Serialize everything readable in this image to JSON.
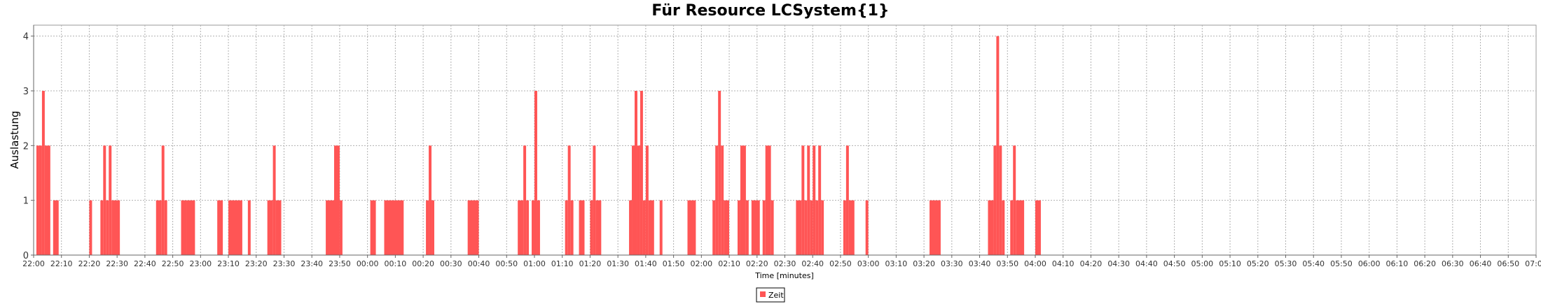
{
  "chart_data": {
    "type": "bar",
    "title": "Für Resource LCSystem{1}",
    "xlabel": "Time [minutes]",
    "ylabel": "Auslastung",
    "x_start": "22:00",
    "x_end": "07:00",
    "x_tick_labels": [
      "22:00",
      "22:10",
      "22:20",
      "22:30",
      "22:40",
      "22:50",
      "23:00",
      "23:10",
      "23:20",
      "23:30",
      "23:40",
      "23:50",
      "00:00",
      "00:10",
      "00:20",
      "00:30",
      "00:40",
      "00:50",
      "01:00",
      "01:10",
      "01:20",
      "01:30",
      "01:40",
      "01:50",
      "02:00",
      "02:10",
      "02:20",
      "02:30",
      "02:40",
      "02:50",
      "03:00",
      "03:10",
      "03:20",
      "03:30",
      "03:40",
      "03:50",
      "04:00",
      "04:10",
      "04:20",
      "04:30",
      "04:40",
      "04:50",
      "05:00",
      "05:10",
      "05:20",
      "05:30",
      "05:40",
      "05:50",
      "06:00",
      "06:10",
      "06:20",
      "06:30",
      "06:40",
      "06:50",
      "07:00"
    ],
    "y_ticks": [
      0,
      1,
      2,
      3,
      4
    ],
    "ylim": [
      0,
      4.2
    ],
    "grid": true,
    "legend_position": "bottom-center",
    "color": "#ff5555",
    "series": [
      {
        "name": "Zeit",
        "bars": [
          {
            "start": "22:01",
            "end": "22:02",
            "value": 2
          },
          {
            "start": "22:02",
            "end": "22:03",
            "value": 2
          },
          {
            "start": "22:03",
            "end": "22:04",
            "value": 3
          },
          {
            "start": "22:04",
            "end": "22:06",
            "value": 2
          },
          {
            "start": "22:07",
            "end": "22:09",
            "value": 1
          },
          {
            "start": "22:20",
            "end": "22:21",
            "value": 1
          },
          {
            "start": "22:24",
            "end": "22:25",
            "value": 1
          },
          {
            "start": "22:25",
            "end": "22:26",
            "value": 2
          },
          {
            "start": "22:26",
            "end": "22:27",
            "value": 1
          },
          {
            "start": "22:27",
            "end": "22:28",
            "value": 2
          },
          {
            "start": "22:28",
            "end": "22:31",
            "value": 1
          },
          {
            "start": "22:44",
            "end": "22:46",
            "value": 1
          },
          {
            "start": "22:46",
            "end": "22:47",
            "value": 2
          },
          {
            "start": "22:47",
            "end": "22:48",
            "value": 1
          },
          {
            "start": "22:53",
            "end": "22:55",
            "value": 1
          },
          {
            "start": "22:55",
            "end": "22:58",
            "value": 1
          },
          {
            "start": "23:06",
            "end": "23:08",
            "value": 1
          },
          {
            "start": "23:10",
            "end": "23:15",
            "value": 1
          },
          {
            "start": "23:17",
            "end": "23:18",
            "value": 1
          },
          {
            "start": "23:24",
            "end": "23:26",
            "value": 1
          },
          {
            "start": "23:26",
            "end": "23:27",
            "value": 2
          },
          {
            "start": "23:27",
            "end": "23:29",
            "value": 1
          },
          {
            "start": "23:45",
            "end": "23:48",
            "value": 1
          },
          {
            "start": "23:48",
            "end": "23:50",
            "value": 2
          },
          {
            "start": "23:50",
            "end": "23:51",
            "value": 1
          },
          {
            "start": "00:01",
            "end": "00:03",
            "value": 1
          },
          {
            "start": "00:06",
            "end": "00:13",
            "value": 1
          },
          {
            "start": "00:21",
            "end": "00:22",
            "value": 1
          },
          {
            "start": "00:22",
            "end": "00:23",
            "value": 2
          },
          {
            "start": "00:23",
            "end": "00:24",
            "value": 1
          },
          {
            "start": "00:36",
            "end": "00:40",
            "value": 1
          },
          {
            "start": "00:54",
            "end": "00:56",
            "value": 1
          },
          {
            "start": "00:56",
            "end": "00:57",
            "value": 2
          },
          {
            "start": "00:57",
            "end": "00:58",
            "value": 1
          },
          {
            "start": "00:59",
            "end": "01:00",
            "value": 1
          },
          {
            "start": "01:00",
            "end": "01:01",
            "value": 3
          },
          {
            "start": "01:01",
            "end": "01:02",
            "value": 1
          },
          {
            "start": "01:11",
            "end": "01:12",
            "value": 1
          },
          {
            "start": "01:12",
            "end": "01:13",
            "value": 2
          },
          {
            "start": "01:13",
            "end": "01:14",
            "value": 1
          },
          {
            "start": "01:16",
            "end": "01:18",
            "value": 1
          },
          {
            "start": "01:20",
            "end": "01:21",
            "value": 1
          },
          {
            "start": "01:21",
            "end": "01:22",
            "value": 2
          },
          {
            "start": "01:22",
            "end": "01:24",
            "value": 1
          },
          {
            "start": "01:34",
            "end": "01:35",
            "value": 1
          },
          {
            "start": "01:35",
            "end": "01:36",
            "value": 2
          },
          {
            "start": "01:36",
            "end": "01:37",
            "value": 3
          },
          {
            "start": "01:37",
            "end": "01:38",
            "value": 2
          },
          {
            "start": "01:38",
            "end": "01:39",
            "value": 3
          },
          {
            "start": "01:39",
            "end": "01:40",
            "value": 1
          },
          {
            "start": "01:40",
            "end": "01:41",
            "value": 2
          },
          {
            "start": "01:41",
            "end": "01:43",
            "value": 1
          },
          {
            "start": "01:45",
            "end": "01:46",
            "value": 1
          },
          {
            "start": "01:55",
            "end": "01:58",
            "value": 1
          },
          {
            "start": "02:04",
            "end": "02:05",
            "value": 1
          },
          {
            "start": "02:05",
            "end": "02:06",
            "value": 2
          },
          {
            "start": "02:06",
            "end": "02:07",
            "value": 3
          },
          {
            "start": "02:07",
            "end": "02:08",
            "value": 2
          },
          {
            "start": "02:08",
            "end": "02:10",
            "value": 1
          },
          {
            "start": "02:13",
            "end": "02:14",
            "value": 1
          },
          {
            "start": "02:14",
            "end": "02:16",
            "value": 2
          },
          {
            "start": "02:16",
            "end": "02:17",
            "value": 1
          },
          {
            "start": "02:18",
            "end": "02:21",
            "value": 1
          },
          {
            "start": "02:22",
            "end": "02:23",
            "value": 1
          },
          {
            "start": "02:23",
            "end": "02:25",
            "value": 2
          },
          {
            "start": "02:25",
            "end": "02:26",
            "value": 1
          },
          {
            "start": "02:34",
            "end": "02:36",
            "value": 1
          },
          {
            "start": "02:36",
            "end": "02:37",
            "value": 2
          },
          {
            "start": "02:37",
            "end": "02:38",
            "value": 1
          },
          {
            "start": "02:38",
            "end": "02:39",
            "value": 2
          },
          {
            "start": "02:39",
            "end": "02:40",
            "value": 1
          },
          {
            "start": "02:40",
            "end": "02:41",
            "value": 2
          },
          {
            "start": "02:41",
            "end": "02:42",
            "value": 1
          },
          {
            "start": "02:42",
            "end": "02:43",
            "value": 2
          },
          {
            "start": "02:43",
            "end": "02:44",
            "value": 1
          },
          {
            "start": "02:51",
            "end": "02:52",
            "value": 1
          },
          {
            "start": "02:52",
            "end": "02:53",
            "value": 2
          },
          {
            "start": "02:53",
            "end": "02:55",
            "value": 1
          },
          {
            "start": "02:59",
            "end": "03:00",
            "value": 1
          },
          {
            "start": "03:22",
            "end": "03:26",
            "value": 1
          },
          {
            "start": "03:43",
            "end": "03:45",
            "value": 1
          },
          {
            "start": "03:45",
            "end": "03:46",
            "value": 2
          },
          {
            "start": "03:46",
            "end": "03:47",
            "value": 4
          },
          {
            "start": "03:47",
            "end": "03:48",
            "value": 2
          },
          {
            "start": "03:48",
            "end": "03:49",
            "value": 1
          },
          {
            "start": "03:51",
            "end": "03:52",
            "value": 1
          },
          {
            "start": "03:52",
            "end": "03:53",
            "value": 2
          },
          {
            "start": "03:53",
            "end": "03:56",
            "value": 1
          },
          {
            "start": "04:00",
            "end": "04:02",
            "value": 1
          }
        ]
      }
    ]
  }
}
